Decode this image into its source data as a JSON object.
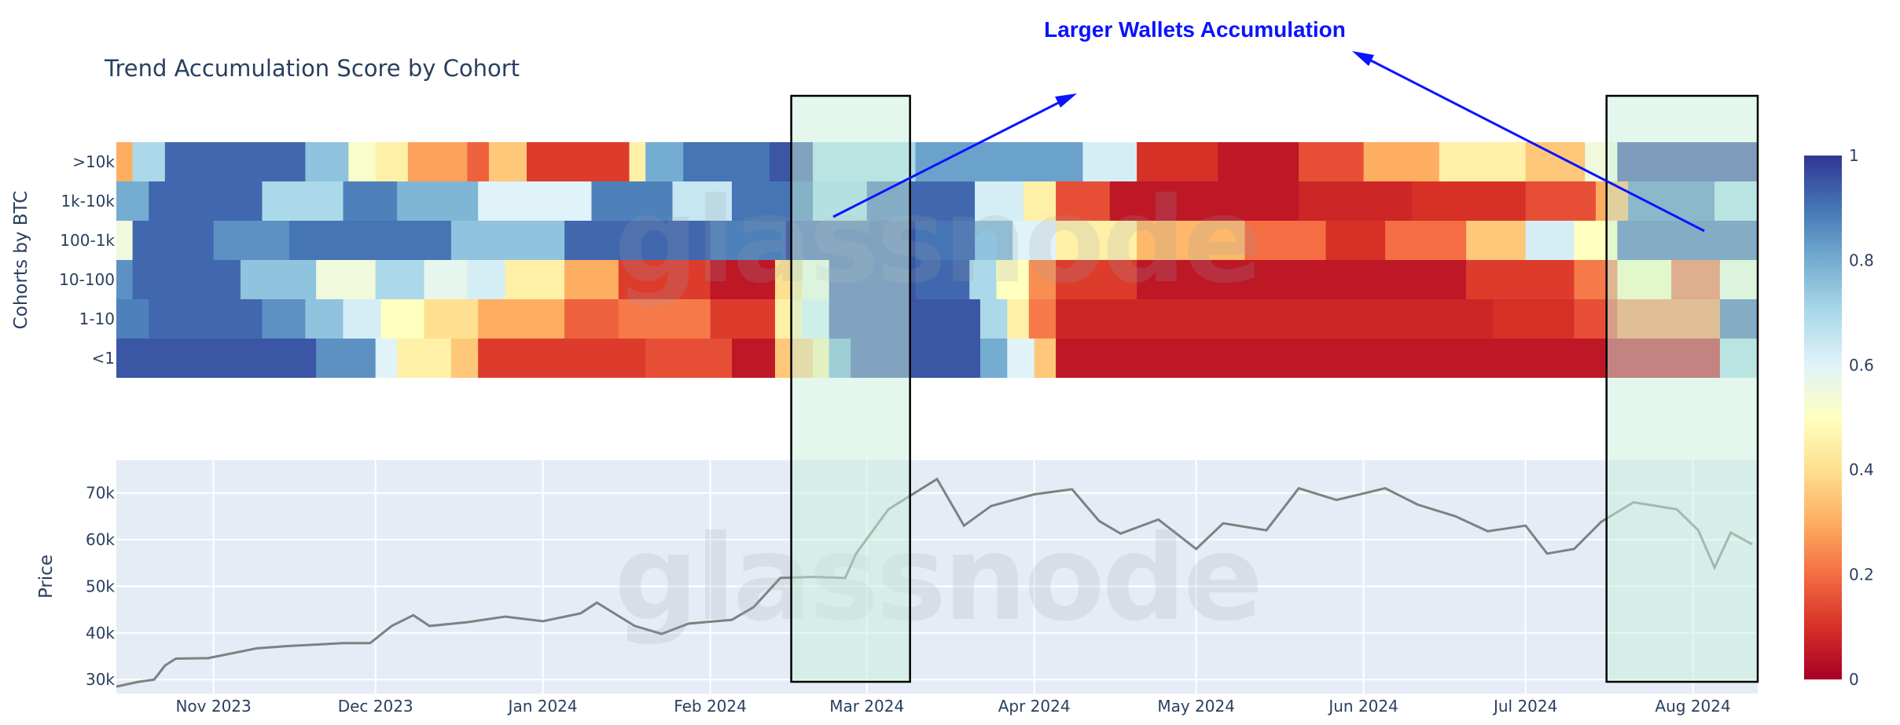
{
  "chart_data": [
    {
      "type": "heatmap",
      "title": "Trend Accumulation Score by Cohort",
      "ylabel": "Cohorts by BTC",
      "xlabel": "",
      "rows": [
        ">10k",
        "1k-10k",
        "100-1k",
        "10-100",
        "1-10",
        "<1"
      ],
      "x_range": [
        "2023-10-14",
        "2024-08-13"
      ],
      "x_ticks": [
        "Nov 2023",
        "Dec 2023",
        "Jan 2024",
        "Feb 2024",
        "Mar 2024",
        "Apr 2024",
        "May 2024",
        "Jun 2024",
        "Jul 2024",
        "Aug 2024"
      ],
      "colorscale": "RdYlBu",
      "zlim": [
        0,
        1
      ],
      "colorbar_ticks": [
        "0",
        "0.2",
        "0.4",
        "0.6",
        "0.8",
        "1"
      ],
      "segments": {
        ">10k": [
          [
            "2023-10-14",
            0.3
          ],
          [
            "2023-10-17",
            0.7
          ],
          [
            "2023-10-23",
            0.92
          ],
          [
            "2023-11-18",
            0.75
          ],
          [
            "2023-11-26",
            0.52
          ],
          [
            "2023-12-01",
            0.45
          ],
          [
            "2023-12-07",
            0.28
          ],
          [
            "2023-12-18",
            0.18
          ],
          [
            "2023-12-22",
            0.35
          ],
          [
            "2023-12-29",
            0.12
          ],
          [
            "2024-01-17",
            0.45
          ],
          [
            "2024-01-20",
            0.8
          ],
          [
            "2024-01-27",
            0.9
          ],
          [
            "2024-02-12",
            0.95
          ],
          [
            "2024-02-20",
            0.7
          ],
          [
            "2024-03-10",
            0.82
          ],
          [
            "2024-04-10",
            0.62
          ],
          [
            "2024-04-20",
            0.1
          ],
          [
            "2024-05-05",
            0.05
          ],
          [
            "2024-05-20",
            0.15
          ],
          [
            "2024-06-01",
            0.3
          ],
          [
            "2024-06-15",
            0.45
          ],
          [
            "2024-07-01",
            0.35
          ],
          [
            "2024-07-12",
            0.55
          ],
          [
            "2024-07-18",
            0.97
          ]
        ],
        "1k-10k": [
          [
            "2023-10-14",
            0.8
          ],
          [
            "2023-10-20",
            0.92
          ],
          [
            "2023-11-10",
            0.7
          ],
          [
            "2023-11-25",
            0.88
          ],
          [
            "2023-12-05",
            0.78
          ],
          [
            "2023-12-20",
            0.6
          ],
          [
            "2024-01-10",
            0.88
          ],
          [
            "2024-01-25",
            0.65
          ],
          [
            "2024-02-05",
            0.9
          ],
          [
            "2024-02-20",
            0.72
          ],
          [
            "2024-03-01",
            0.92
          ],
          [
            "2024-03-21",
            0.62
          ],
          [
            "2024-03-30",
            0.45
          ],
          [
            "2024-04-05",
            0.15
          ],
          [
            "2024-04-15",
            0.05
          ],
          [
            "2024-05-20",
            0.08
          ],
          [
            "2024-06-10",
            0.1
          ],
          [
            "2024-07-01",
            0.15
          ],
          [
            "2024-07-14",
            0.3
          ],
          [
            "2024-07-20",
            0.88
          ],
          [
            "2024-08-05",
            0.7
          ]
        ],
        "100-1k": [
          [
            "2023-10-14",
            0.55
          ],
          [
            "2023-10-17",
            0.92
          ],
          [
            "2023-11-01",
            0.85
          ],
          [
            "2023-11-15",
            0.9
          ],
          [
            "2023-12-15",
            0.75
          ],
          [
            "2024-01-05",
            0.92
          ],
          [
            "2024-02-01",
            0.88
          ],
          [
            "2024-02-15",
            0.95
          ],
          [
            "2024-03-10",
            0.9
          ],
          [
            "2024-03-21",
            0.75
          ],
          [
            "2024-03-28",
            0.6
          ],
          [
            "2024-04-05",
            0.45
          ],
          [
            "2024-04-20",
            0.32
          ],
          [
            "2024-05-10",
            0.2
          ],
          [
            "2024-05-25",
            0.1
          ],
          [
            "2024-06-05",
            0.2
          ],
          [
            "2024-06-20",
            0.35
          ],
          [
            "2024-07-01",
            0.62
          ],
          [
            "2024-07-10",
            0.5
          ],
          [
            "2024-07-18",
            0.92
          ]
        ],
        "10-100": [
          [
            "2023-10-14",
            0.85
          ],
          [
            "2023-10-17",
            0.92
          ],
          [
            "2023-11-06",
            0.75
          ],
          [
            "2023-11-20",
            0.55
          ],
          [
            "2023-12-01",
            0.7
          ],
          [
            "2023-12-10",
            0.58
          ],
          [
            "2023-12-18",
            0.62
          ],
          [
            "2023-12-25",
            0.45
          ],
          [
            "2024-01-05",
            0.3
          ],
          [
            "2024-01-15",
            0.12
          ],
          [
            "2024-02-01",
            0.05
          ],
          [
            "2024-02-13",
            0.4
          ],
          [
            "2024-02-18",
            0.55
          ],
          [
            "2024-02-23",
            0.95
          ],
          [
            "2024-03-10",
            0.92
          ],
          [
            "2024-03-20",
            0.7
          ],
          [
            "2024-03-25",
            0.5
          ],
          [
            "2024-03-31",
            0.25
          ],
          [
            "2024-04-05",
            0.12
          ],
          [
            "2024-04-20",
            0.05
          ],
          [
            "2024-06-20",
            0.12
          ],
          [
            "2024-07-10",
            0.22
          ],
          [
            "2024-07-18",
            0.5
          ],
          [
            "2024-07-28",
            0.2
          ],
          [
            "2024-08-06",
            0.55
          ]
        ],
        "1-10": [
          [
            "2023-10-14",
            0.88
          ],
          [
            "2023-10-20",
            0.92
          ],
          [
            "2023-11-10",
            0.85
          ],
          [
            "2023-11-18",
            0.75
          ],
          [
            "2023-11-25",
            0.62
          ],
          [
            "2023-12-02",
            0.5
          ],
          [
            "2023-12-10",
            0.4
          ],
          [
            "2023-12-20",
            0.3
          ],
          [
            "2024-01-05",
            0.18
          ],
          [
            "2024-01-15",
            0.22
          ],
          [
            "2024-02-01",
            0.12
          ],
          [
            "2024-02-13",
            0.45
          ],
          [
            "2024-02-18",
            0.62
          ],
          [
            "2024-02-23",
            0.95
          ],
          [
            "2024-03-22",
            0.7
          ],
          [
            "2024-03-27",
            0.45
          ],
          [
            "2024-03-31",
            0.22
          ],
          [
            "2024-04-05",
            0.08
          ],
          [
            "2024-06-25",
            0.1
          ],
          [
            "2024-07-10",
            0.15
          ],
          [
            "2024-07-18",
            0.25
          ],
          [
            "2024-08-06",
            0.92
          ]
        ],
        "<1": [
          [
            "2023-10-14",
            0.95
          ],
          [
            "2023-11-20",
            0.85
          ],
          [
            "2023-12-01",
            0.6
          ],
          [
            "2023-12-05",
            0.45
          ],
          [
            "2023-12-15",
            0.35
          ],
          [
            "2023-12-20",
            0.12
          ],
          [
            "2024-01-20",
            0.15
          ],
          [
            "2024-02-05",
            0.05
          ],
          [
            "2024-02-13",
            0.35
          ],
          [
            "2024-02-20",
            0.45
          ],
          [
            "2024-02-23",
            0.8
          ],
          [
            "2024-02-27",
            0.95
          ],
          [
            "2024-03-22",
            0.8
          ],
          [
            "2024-03-27",
            0.6
          ],
          [
            "2024-04-01",
            0.35
          ],
          [
            "2024-04-05",
            0.05
          ],
          [
            "2024-08-06",
            0.7
          ]
        ]
      }
    },
    {
      "type": "line",
      "ylabel": "Price",
      "xlabel": "",
      "ylim": [
        27000,
        77000
      ],
      "y_ticks": [
        30000,
        40000,
        50000,
        60000,
        70000
      ],
      "y_tick_labels": [
        "30k",
        "40k",
        "50k",
        "60k",
        "70k"
      ],
      "x_ticks": [
        "Nov 2023",
        "Dec 2023",
        "Jan 2024",
        "Feb 2024",
        "Mar 2024",
        "Apr 2024",
        "May 2024",
        "Jun 2024",
        "Jul 2024",
        "Aug 2024"
      ],
      "x": [
        "2023-10-14",
        "2023-10-18",
        "2023-10-21",
        "2023-10-23",
        "2023-10-25",
        "2023-10-31",
        "2023-11-09",
        "2023-11-15",
        "2023-11-20",
        "2023-11-25",
        "2023-11-30",
        "2023-12-04",
        "2023-12-08",
        "2023-12-11",
        "2023-12-18",
        "2023-12-25",
        "2024-01-01",
        "2024-01-08",
        "2024-01-11",
        "2024-01-18",
        "2024-01-23",
        "2024-01-28",
        "2024-02-05",
        "2024-02-09",
        "2024-02-14",
        "2024-02-20",
        "2024-02-26",
        "2024-02-28",
        "2024-03-05",
        "2024-03-14",
        "2024-03-19",
        "2024-03-24",
        "2024-04-01",
        "2024-04-08",
        "2024-04-13",
        "2024-04-17",
        "2024-04-24",
        "2024-05-01",
        "2024-05-06",
        "2024-05-14",
        "2024-05-20",
        "2024-05-27",
        "2024-06-05",
        "2024-06-11",
        "2024-06-18",
        "2024-06-24",
        "2024-07-01",
        "2024-07-05",
        "2024-07-10",
        "2024-07-15",
        "2024-07-21",
        "2024-07-29",
        "2024-08-02",
        "2024-08-05",
        "2024-08-08",
        "2024-08-12"
      ],
      "values": [
        28500,
        29500,
        30000,
        33000,
        34500,
        34600,
        36700,
        37200,
        37500,
        37800,
        37800,
        41500,
        43800,
        41500,
        42300,
        43500,
        42500,
        44200,
        46500,
        41500,
        39800,
        42000,
        42800,
        45500,
        51800,
        52000,
        51800,
        57000,
        66500,
        73000,
        63000,
        67200,
        69700,
        70800,
        64000,
        61300,
        64300,
        58000,
        63500,
        62000,
        71000,
        68500,
        71000,
        67500,
        65000,
        61800,
        63000,
        57000,
        58000,
        63800,
        68000,
        66500,
        62000,
        54000,
        61500,
        59000
      ],
      "annotation": "Larger Wallets Accumulation",
      "highlight_ranges": [
        [
          "2024-02-16",
          "2024-03-09"
        ],
        [
          "2024-07-16",
          "2024-08-13"
        ]
      ],
      "watermark": "glassnode"
    }
  ],
  "colors": {
    "axis_text": "#2a3f5f",
    "plot_bg": "#e5ecf6",
    "grid": "#ffffff",
    "price_line": "#808080",
    "annotation": "#0a14ff",
    "highlight_fill": "rgba(200,240,220,0.5)",
    "highlight_stroke": "#000000"
  }
}
